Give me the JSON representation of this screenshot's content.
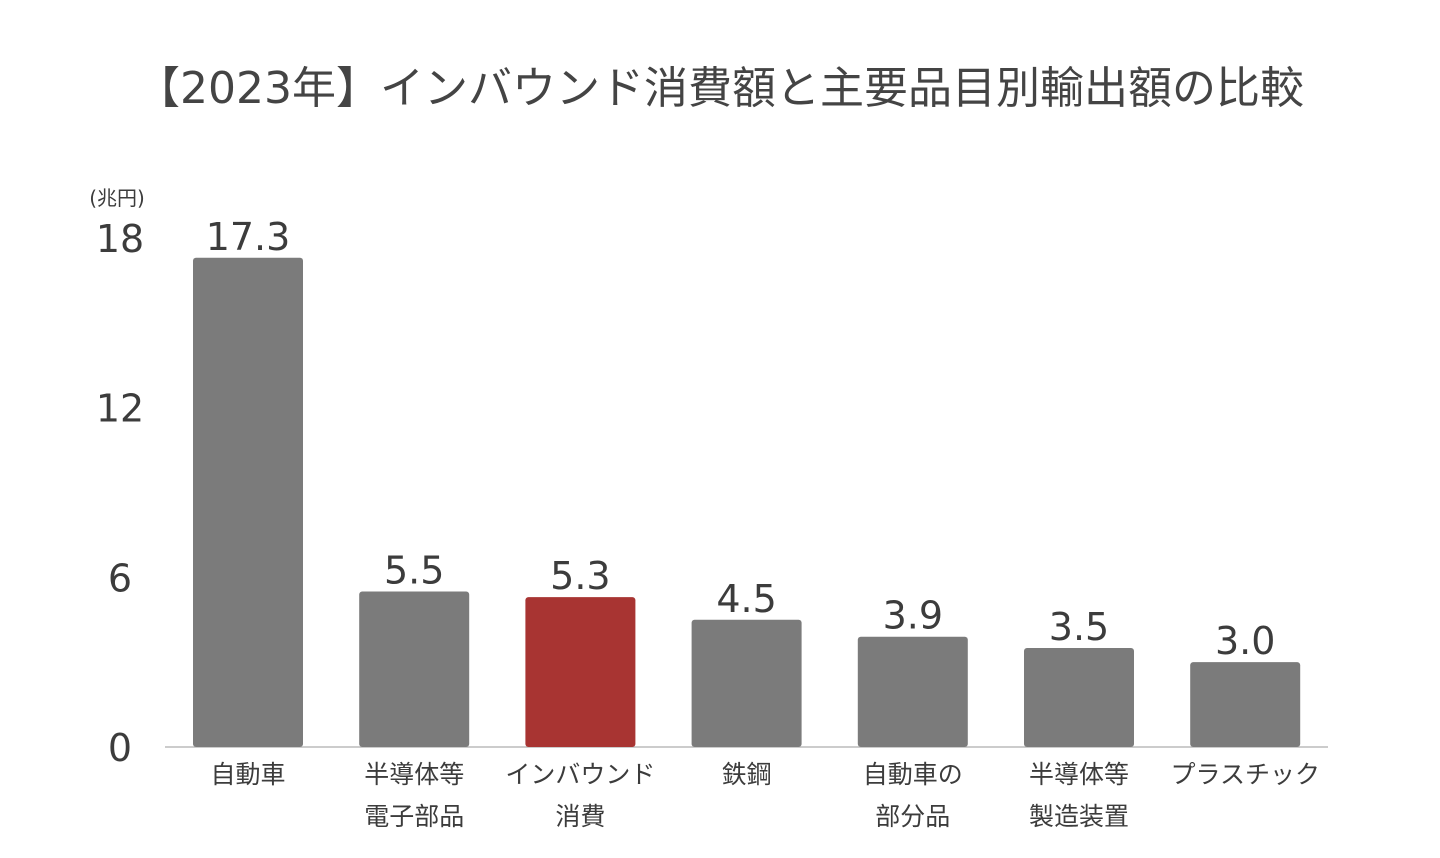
{
  "chart_data": {
    "type": "bar",
    "title": "【2023年】インバウンド消費額と主要品目別輸出額の比較",
    "ylabel": "(兆円)",
    "xlabel": "",
    "ylim": [
      0,
      18
    ],
    "yticks": [
      0,
      6,
      12,
      18
    ],
    "grid": false,
    "categories": [
      [
        "自動車"
      ],
      [
        "半導体等",
        "電子部品"
      ],
      [
        "インバウンド",
        "消費"
      ],
      [
        "鉄鋼"
      ],
      [
        "自動車の",
        "部分品"
      ],
      [
        "半導体等",
        "製造装置"
      ],
      [
        "プラスチック"
      ]
    ],
    "values": [
      17.3,
      5.5,
      5.3,
      4.5,
      3.9,
      3.5,
      3.0
    ],
    "value_labels": [
      "17.3",
      "5.5",
      "5.3",
      "4.5",
      "3.9",
      "3.5",
      "3.0"
    ],
    "highlight_index": 2,
    "colors": {
      "bar": "#7b7b7b",
      "highlight": "#a83432",
      "axis": "#cccccc",
      "text": "#3c3c3c"
    }
  }
}
